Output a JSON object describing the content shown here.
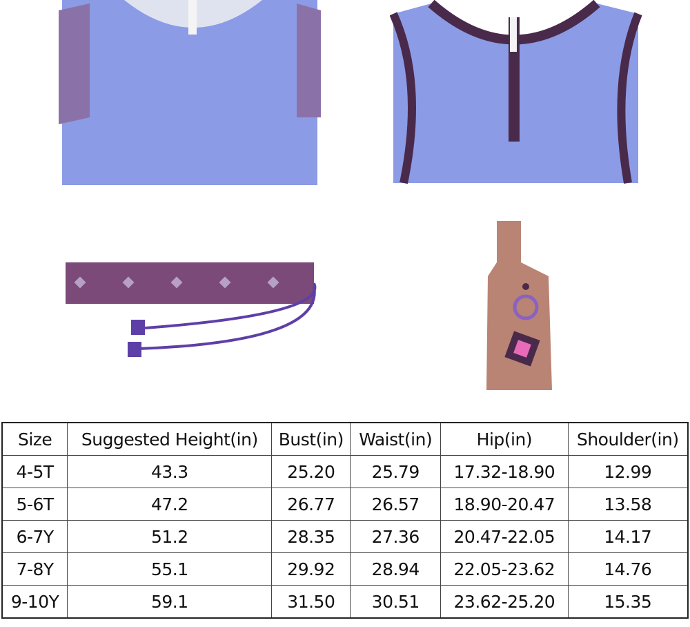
{
  "colors": {
    "top": "#8c9be6",
    "sleeve": "#8a72a8",
    "belt": "#7c4a78",
    "bag": "#b98474",
    "trim": "#4a2a4a"
  },
  "images": [
    {
      "name": "short-sleeve-top"
    },
    {
      "name": "sleeveless-vest"
    },
    {
      "name": "tassel-belt"
    },
    {
      "name": "drawstring-pouch"
    }
  ],
  "size_chart": {
    "headers": [
      "Size",
      "Suggested Height(in)",
      "Bust(in)",
      "Waist(in)",
      "Hip(in)",
      "Shoulder(in)"
    ],
    "rows": [
      [
        "4-5T",
        "43.3",
        "25.20",
        "25.79",
        "17.32-18.90",
        "12.99"
      ],
      [
        "5-6T",
        "47.2",
        "26.77",
        "26.57",
        "18.90-20.47",
        "13.58"
      ],
      [
        "6-7Y",
        "51.2",
        "28.35",
        "27.36",
        "20.47-22.05",
        "14.17"
      ],
      [
        "7-8Y",
        "55.1",
        "29.92",
        "28.94",
        "22.05-23.62",
        "14.76"
      ],
      [
        "9-10Y",
        "59.1",
        "31.50",
        "30.51",
        "23.62-25.20",
        "15.35"
      ]
    ]
  }
}
